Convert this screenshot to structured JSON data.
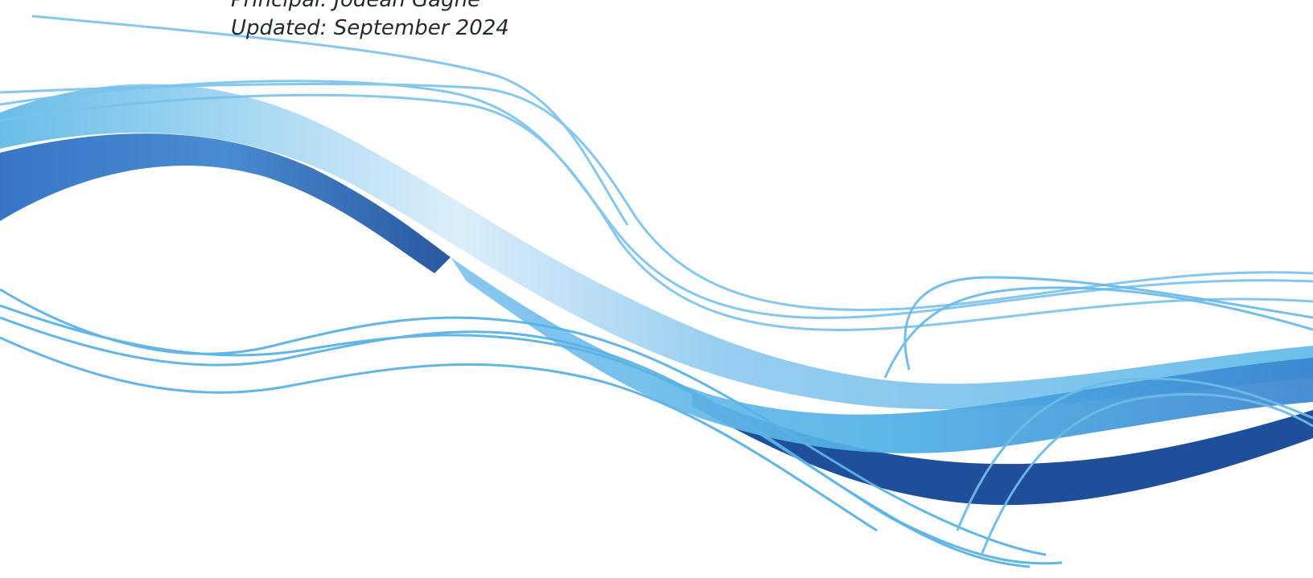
{
  "document": {
    "principal_line": "Principal: Jodean Gagne",
    "updated_line": "Updated: September 2024"
  },
  "decoration": {
    "name": "blue-wave-ribbons",
    "colors": {
      "deep_blue": "#1f4f9a",
      "mid_blue": "#3f8bd0",
      "light_blue": "#5cb8e8",
      "pale_blue": "#cfe8f7"
    }
  }
}
